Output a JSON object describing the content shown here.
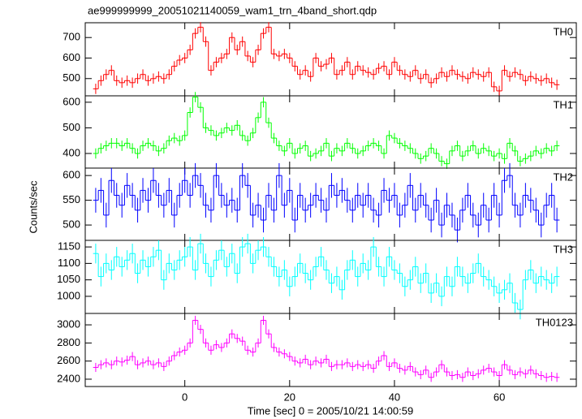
{
  "chart_data": {
    "type": "multi-panel-step",
    "title": "ae999999999_20051021140059_wam1_trn_4band_short.qdp",
    "xlabel": "Time [sec] 0 = 2005/10/21 14:00:59",
    "ylabel": "Counts/sec",
    "xlim": [
      -19,
      74.7
    ],
    "xticks": [
      0,
      20,
      40,
      60
    ],
    "x": [
      -17,
      -16,
      -15,
      -14,
      -13,
      -12,
      -11,
      -10,
      -9,
      -8,
      -7,
      -6,
      -5,
      -4,
      -3,
      -2,
      -1,
      0,
      1,
      2,
      3,
      4,
      5,
      6,
      7,
      8,
      9,
      10,
      11,
      12,
      13,
      14,
      15,
      16,
      17,
      18,
      19,
      20,
      21,
      22,
      23,
      24,
      25,
      26,
      27,
      28,
      29,
      30,
      31,
      32,
      33,
      34,
      35,
      36,
      37,
      38,
      39,
      40,
      41,
      42,
      43,
      44,
      45,
      46,
      47,
      48,
      49,
      50,
      51,
      52,
      53,
      54,
      55,
      56,
      57,
      58,
      59,
      60,
      61,
      62,
      63,
      64,
      65,
      66,
      67,
      68,
      69,
      70,
      71
    ],
    "panels": [
      {
        "name": "TH0",
        "color": "#ff0000",
        "ylim": [
          416,
          772
        ],
        "yticks": [
          500,
          600,
          700
        ],
        "error": 25,
        "values": [
          450,
          490,
          520,
          540,
          490,
          480,
          490,
          480,
          500,
          520,
          490,
          500,
          510,
          500,
          520,
          560,
          590,
          600,
          640,
          720,
          750,
          680,
          540,
          580,
          600,
          620,
          700,
          640,
          680,
          610,
          580,
          640,
          720,
          750,
          620,
          610,
          620,
          600,
          560,
          520,
          540,
          510,
          600,
          560,
          570,
          600,
          520,
          540,
          580,
          520,
          560,
          540,
          530,
          520,
          550,
          560,
          520,
          580,
          540,
          520,
          510,
          540,
          500,
          520,
          480,
          500,
          530,
          510,
          540,
          520,
          510,
          500,
          530,
          520,
          510,
          530,
          460,
          440,
          540,
          510,
          530,
          520,
          490,
          510,
          500,
          490,
          500,
          480,
          470
        ]
      },
      {
        "name": "TH1",
        "color": "#00ff00",
        "ylim": [
          343,
          625
        ],
        "yticks": [
          400,
          500,
          600
        ],
        "error": 20,
        "values": [
          400,
          420,
          430,
          440,
          440,
          430,
          440,
          420,
          400,
          430,
          440,
          430,
          410,
          420,
          450,
          460,
          450,
          470,
          560,
          620,
          580,
          500,
          490,
          470,
          480,
          500,
          490,
          510,
          470,
          450,
          480,
          540,
          600,
          520,
          460,
          430,
          410,
          440,
          400,
          420,
          430,
          390,
          400,
          410,
          440,
          390,
          420,
          410,
          440,
          420,
          400,
          410,
          430,
          440,
          430,
          400,
          470,
          460,
          440,
          430,
          420,
          400,
          380,
          390,
          420,
          400,
          370,
          360,
          410,
          430,
          390,
          410,
          430,
          400,
          420,
          410,
          390,
          400,
          380,
          440,
          410,
          370,
          380,
          390,
          410,
          400,
          420,
          410,
          430
        ]
      },
      {
        "name": "TH2",
        "color": "#0000ff",
        "ylim": [
          469,
          615
        ],
        "yticks": [
          500,
          550,
          600
        ],
        "error": 25,
        "values": [
          550,
          570,
          520,
          590,
          560,
          540,
          580,
          560,
          530,
          570,
          550,
          590,
          560,
          540,
          570,
          520,
          560,
          590,
          560,
          600,
          580,
          540,
          530,
          600,
          560,
          540,
          550,
          530,
          600,
          580,
          520,
          540,
          510,
          560,
          530,
          600,
          540,
          570,
          510,
          560,
          530,
          540,
          560,
          550,
          530,
          580,
          560,
          570,
          550,
          530,
          560,
          540,
          560,
          530,
          520,
          570,
          550,
          560,
          520,
          540,
          580,
          530,
          560,
          540,
          510,
          550,
          500,
          540,
          520,
          490,
          530,
          560,
          520,
          500,
          540,
          510,
          560,
          520,
          590,
          600,
          540,
          520,
          560,
          550,
          530,
          500,
          540,
          560,
          510
        ]
      },
      {
        "name": "TH3",
        "color": "#00ffff",
        "ylim": [
          948,
          1170
        ],
        "yticks": [
          1000,
          1050,
          1100,
          1150
        ],
        "error": 30,
        "values": [
          1130,
          1060,
          1100,
          1080,
          1120,
          1090,
          1110,
          1130,
          1070,
          1110,
          1090,
          1120,
          1140,
          1050,
          1100,
          1080,
          1110,
          1120,
          1150,
          1080,
          1160,
          1100,
          1060,
          1110,
          1140,
          1090,
          1130,
          1070,
          1150,
          1160,
          1100,
          1140,
          1150,
          1120,
          1090,
          1060,
          1080,
          1030,
          1060,
          1100,
          1070,
          1050,
          1090,
          1120,
          1080,
          1040,
          1060,
          1020,
          1080,
          1110,
          1060,
          1100,
          1080,
          1150,
          1090,
          1060,
          1120,
          1080,
          1070,
          1030,
          1050,
          1090,
          1040,
          1070,
          1010,
          1040,
          1000,
          1060,
          1030,
          1090,
          1060,
          1040,
          1070,
          1100,
          1060,
          1050,
          1030,
          1010,
          1020,
          1040,
          980,
          960,
          1050,
          1080,
          1040,
          1060,
          1050,
          1040,
          1060
        ]
      },
      {
        "name": "TH0123",
        "color": "#ff00ff",
        "ylim": [
          2319,
          3126
        ],
        "yticks": [
          2400,
          2600,
          2800,
          3000
        ],
        "error": 50,
        "values": [
          2530,
          2560,
          2580,
          2560,
          2600,
          2590,
          2610,
          2650,
          2560,
          2580,
          2600,
          2560,
          2580,
          2540,
          2600,
          2660,
          2700,
          2720,
          2800,
          3050,
          2950,
          2800,
          2720,
          2780,
          2750,
          2800,
          2900,
          2850,
          2820,
          2720,
          2700,
          2800,
          3050,
          2900,
          2750,
          2700,
          2680,
          2650,
          2600,
          2580,
          2620,
          2560,
          2600,
          2580,
          2620,
          2540,
          2560,
          2560,
          2580,
          2540,
          2560,
          2540,
          2560,
          2520,
          2600,
          2660,
          2540,
          2580,
          2520,
          2500,
          2540,
          2480,
          2450,
          2500,
          2420,
          2480,
          2560,
          2480,
          2440,
          2450,
          2420,
          2480,
          2440,
          2460,
          2500,
          2520,
          2480,
          2440,
          2560,
          2500,
          2450,
          2480,
          2460,
          2500,
          2460,
          2440,
          2420,
          2430,
          2420
        ]
      }
    ]
  }
}
